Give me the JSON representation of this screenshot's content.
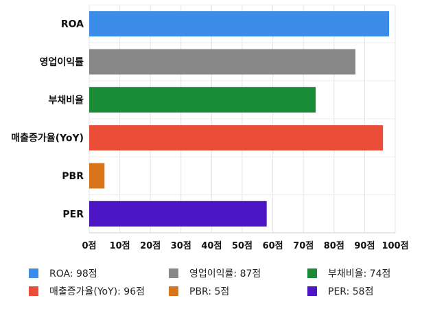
{
  "chart_data": {
    "type": "bar",
    "orientation": "horizontal",
    "categories": [
      "ROA",
      "영업이익률",
      "부채비율",
      "매출증가율(YoY)",
      "PBR",
      "PER"
    ],
    "values": [
      98,
      87,
      74,
      96,
      5,
      58
    ],
    "colors": [
      "#3b8de8",
      "#888888",
      "#1a8c38",
      "#ea4d38",
      "#d8741a",
      "#4c16c4"
    ],
    "xlim": [
      0,
      100
    ],
    "xticks": [
      0,
      10,
      20,
      30,
      40,
      50,
      60,
      70,
      80,
      90,
      100
    ],
    "tick_suffix": "점",
    "grid": true,
    "legend_position": "bottom",
    "legend": [
      {
        "label": "ROA: 98점",
        "color": "#3b8de8"
      },
      {
        "label": "영업이익률: 87점",
        "color": "#888888"
      },
      {
        "label": "부채비율: 74점",
        "color": "#1a8c38"
      },
      {
        "label": "매출증가율(YoY): 96점",
        "color": "#ea4d38"
      },
      {
        "label": "PBR: 5점",
        "color": "#d8741a"
      },
      {
        "label": "PER: 58점",
        "color": "#4c16c4"
      }
    ]
  }
}
